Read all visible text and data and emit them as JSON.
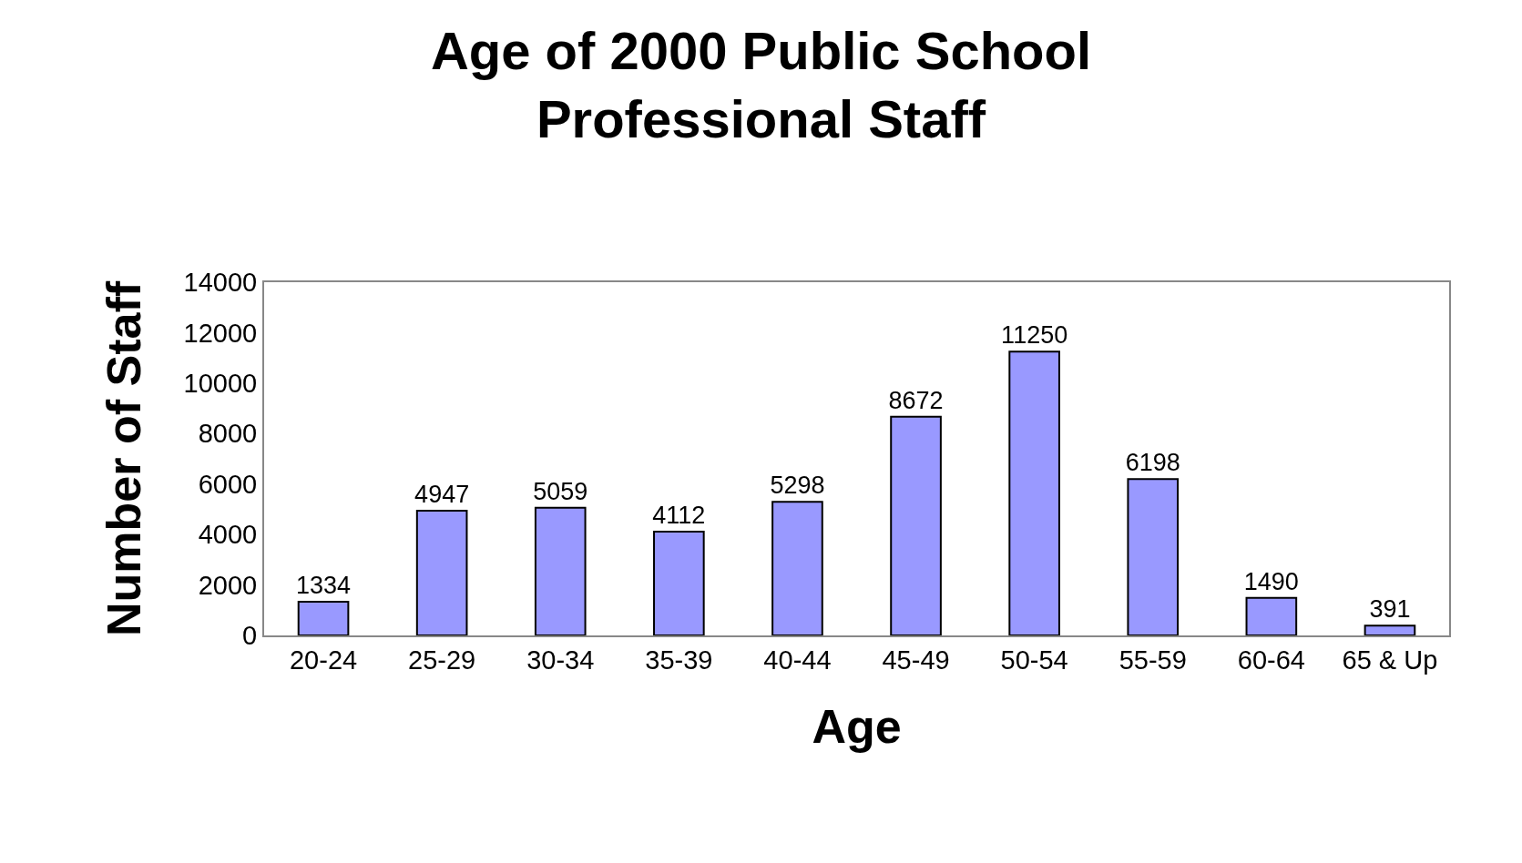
{
  "chart_data": {
    "type": "bar",
    "title": "Age of 2000 Public School Professional Staff",
    "xlabel": "Age",
    "ylabel": "Number of Staff",
    "categories": [
      "20-24",
      "25-29",
      "30-34",
      "35-39",
      "40-44",
      "45-49",
      "50-54",
      "55-59",
      "60-64",
      "65 & Up"
    ],
    "values": [
      1334,
      4947,
      5059,
      4112,
      5298,
      8672,
      11250,
      6198,
      1490,
      391
    ],
    "color": "#9999ff",
    "ylim": [
      0,
      14000
    ],
    "yticks": [
      0,
      2000,
      4000,
      6000,
      8000,
      10000,
      12000,
      14000
    ],
    "legend": false,
    "data_labels": true
  }
}
